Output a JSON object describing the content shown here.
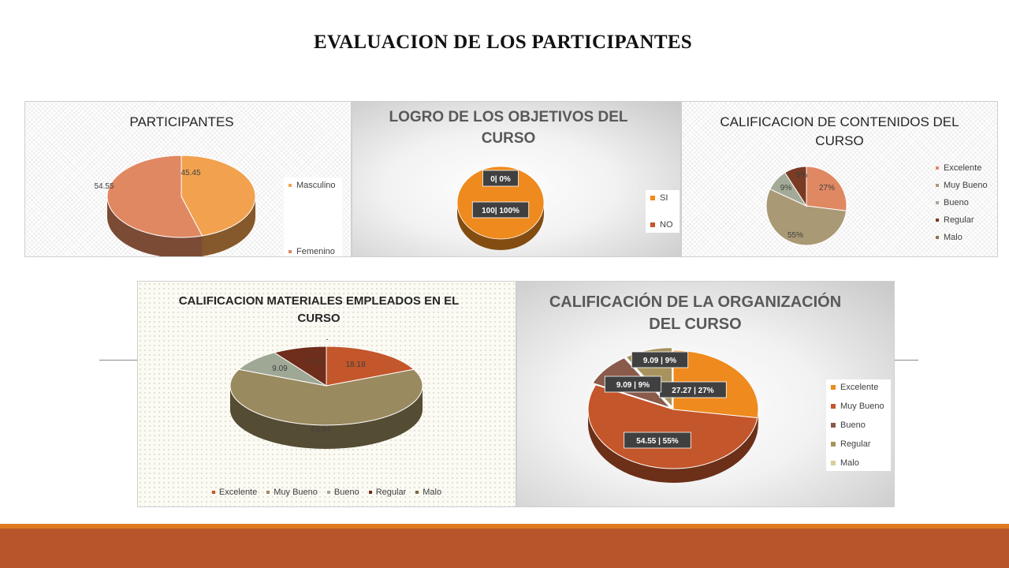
{
  "slide": {
    "title": "EVALUACION DE LOS PARTICIPANTES"
  },
  "chart_data": [
    {
      "id": "participantes",
      "type": "pie",
      "title": "PARTICIPANTES",
      "legend_position": "right",
      "categories": [
        "Masculino",
        "Femenino"
      ],
      "values": [
        45.45,
        54.55
      ],
      "labels": [
        "45.45",
        "54.55"
      ],
      "colors": [
        "#f2a24f",
        "#e08862"
      ]
    },
    {
      "id": "logro",
      "type": "pie",
      "title": "LOGRO DE LOS OBJETIVOS DEL CURSO",
      "legend_position": "right",
      "categories": [
        "SI",
        "NO"
      ],
      "values": [
        100,
        0
      ],
      "labels": [
        "100| 100%",
        "0| 0%"
      ],
      "colors": [
        "#ee8a1e",
        "#c4562b"
      ]
    },
    {
      "id": "contenidos",
      "type": "pie",
      "title": "CALIFICACION DE CONTENIDOS DEL CURSO",
      "legend_position": "right",
      "categories": [
        "Excelente",
        "Muy Bueno",
        "Bueno",
        "Regular",
        "Malo"
      ],
      "values": [
        27,
        55,
        9,
        9,
        0
      ],
      "labels": [
        "27%",
        "55%",
        "9%",
        "9%",
        ""
      ],
      "colors": [
        "#e08862",
        "#a99a75",
        "#a3ab98",
        "#7a3b25",
        "#8a7650"
      ]
    },
    {
      "id": "materiales",
      "type": "pie",
      "title": "CALIFICACION MATERIALES EMPLEADOS EN EL CURSO",
      "legend_position": "bottom",
      "categories": [
        "Excelente",
        "Muy Bueno",
        "Bueno",
        "Regular",
        "Malo"
      ],
      "values": [
        18.18,
        63.64,
        9.09,
        9.09,
        0
      ],
      "labels": [
        "18.18",
        "63.64",
        "9.09",
        "9.09",
        "-"
      ],
      "colors": [
        "#c4562b",
        "#9a8a5f",
        "#9ea895",
        "#6e2e1b",
        "#7a6a48"
      ]
    },
    {
      "id": "organizacion",
      "type": "pie",
      "title": "CALIFICACIÓN DE LA ORGANIZACIÓN DEL CURSO",
      "legend_position": "right",
      "categories": [
        "Excelente",
        "Muy Bueno",
        "Bueno",
        "Regular",
        "Malo"
      ],
      "values": [
        27.27,
        54.55,
        9.09,
        9.09,
        0
      ],
      "labels": [
        "27.27 | 27%",
        "54.55 | 55%",
        "9.09 | 9%",
        "9.09 | 9%",
        ""
      ],
      "colors": [
        "#ee8a1e",
        "#c4562b",
        "#8a5a4a",
        "#a8925e",
        "#d8cf9a"
      ]
    }
  ]
}
